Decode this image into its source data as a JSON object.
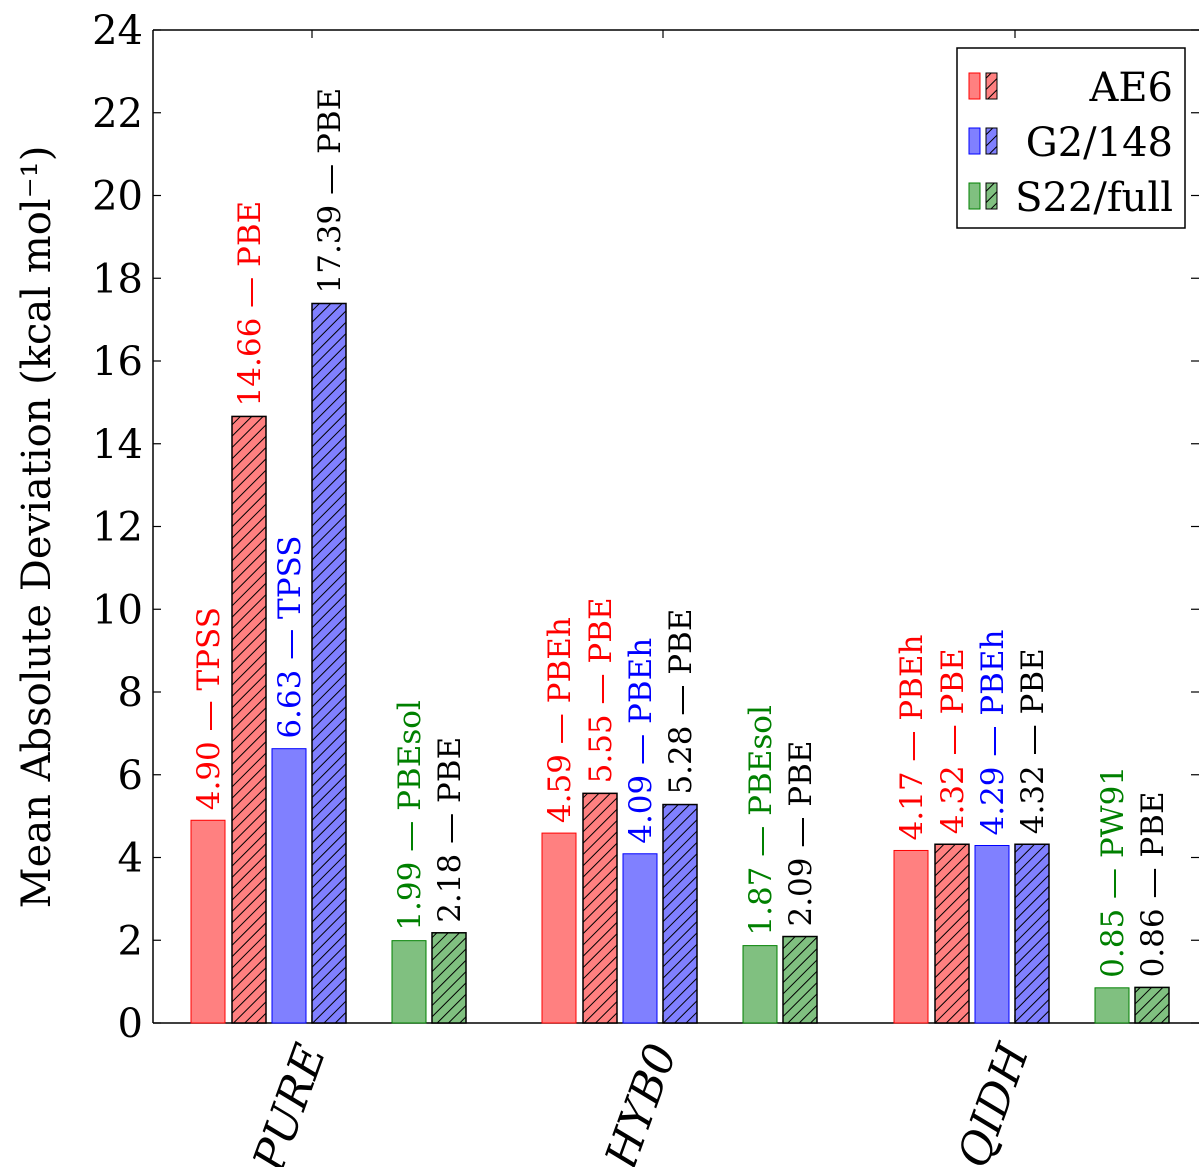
{
  "chart_data": {
    "type": "bar",
    "ylabel": "Mean Absolute Deviation (kcal mol⁻¹)",
    "ylim": [
      0,
      24
    ],
    "yticks": [
      0,
      2,
      4,
      6,
      8,
      10,
      12,
      14,
      16,
      18,
      20,
      22,
      24
    ],
    "categories": [
      "PURE",
      "HYB0",
      "QIDH"
    ],
    "legend": {
      "position": "top-right",
      "entries": [
        {
          "name": "AE6",
          "color": "#ff8080",
          "stroke": "#ff0000"
        },
        {
          "name": "G2/148",
          "color": "#8080ff",
          "stroke": "#0000ff"
        },
        {
          "name": "S22/full",
          "color": "#80c080",
          "stroke": "#008000"
        }
      ]
    },
    "groups": [
      {
        "category": "PURE",
        "bars": [
          {
            "set": "AE6",
            "hatched": false,
            "value": 4.9,
            "label": "4.90 — TPSS",
            "label_color": "#ff0000"
          },
          {
            "set": "AE6",
            "hatched": true,
            "value": 14.66,
            "label": "14.66 — PBE",
            "label_color": "#ff0000"
          },
          {
            "set": "G2/148",
            "hatched": false,
            "value": 6.63,
            "label": "6.63 — TPSS",
            "label_color": "#0000ff"
          },
          {
            "set": "G2/148",
            "hatched": true,
            "value": 17.39,
            "label": "17.39 — PBE",
            "label_color": "#000000"
          },
          {
            "set": "S22/full",
            "hatched": false,
            "value": 1.99,
            "label": "1.99 — PBEsol",
            "label_color": "#008000"
          },
          {
            "set": "S22/full",
            "hatched": true,
            "value": 2.18,
            "label": "2.18 — PBE",
            "label_color": "#000000"
          }
        ]
      },
      {
        "category": "HYB0",
        "bars": [
          {
            "set": "AE6",
            "hatched": false,
            "value": 4.59,
            "label": "4.59 — PBEh",
            "label_color": "#ff0000"
          },
          {
            "set": "AE6",
            "hatched": true,
            "value": 5.55,
            "label": "5.55 — PBE",
            "label_color": "#ff0000"
          },
          {
            "set": "G2/148",
            "hatched": false,
            "value": 4.09,
            "label": "4.09 — PBEh",
            "label_color": "#0000ff"
          },
          {
            "set": "G2/148",
            "hatched": true,
            "value": 5.28,
            "label": "5.28 — PBE",
            "label_color": "#000000"
          },
          {
            "set": "S22/full",
            "hatched": false,
            "value": 1.87,
            "label": "1.87 — PBEsol",
            "label_color": "#008000"
          },
          {
            "set": "S22/full",
            "hatched": true,
            "value": 2.09,
            "label": "2.09 — PBE",
            "label_color": "#000000"
          }
        ]
      },
      {
        "category": "QIDH",
        "bars": [
          {
            "set": "AE6",
            "hatched": false,
            "value": 4.17,
            "label": "4.17 — PBEh",
            "label_color": "#ff0000"
          },
          {
            "set": "AE6",
            "hatched": true,
            "value": 4.32,
            "label": "4.32 — PBE",
            "label_color": "#ff0000"
          },
          {
            "set": "G2/148",
            "hatched": false,
            "value": 4.29,
            "label": "4.29 — PBEh",
            "label_color": "#0000ff"
          },
          {
            "set": "G2/148",
            "hatched": true,
            "value": 4.32,
            "label": "4.32 — PBE",
            "label_color": "#000000"
          },
          {
            "set": "S22/full",
            "hatched": false,
            "value": 0.85,
            "label": "0.85 — PW91",
            "label_color": "#008000"
          },
          {
            "set": "S22/full",
            "hatched": true,
            "value": 0.86,
            "label": "0.86 — PBE",
            "label_color": "#000000"
          }
        ]
      }
    ],
    "grid": false
  }
}
